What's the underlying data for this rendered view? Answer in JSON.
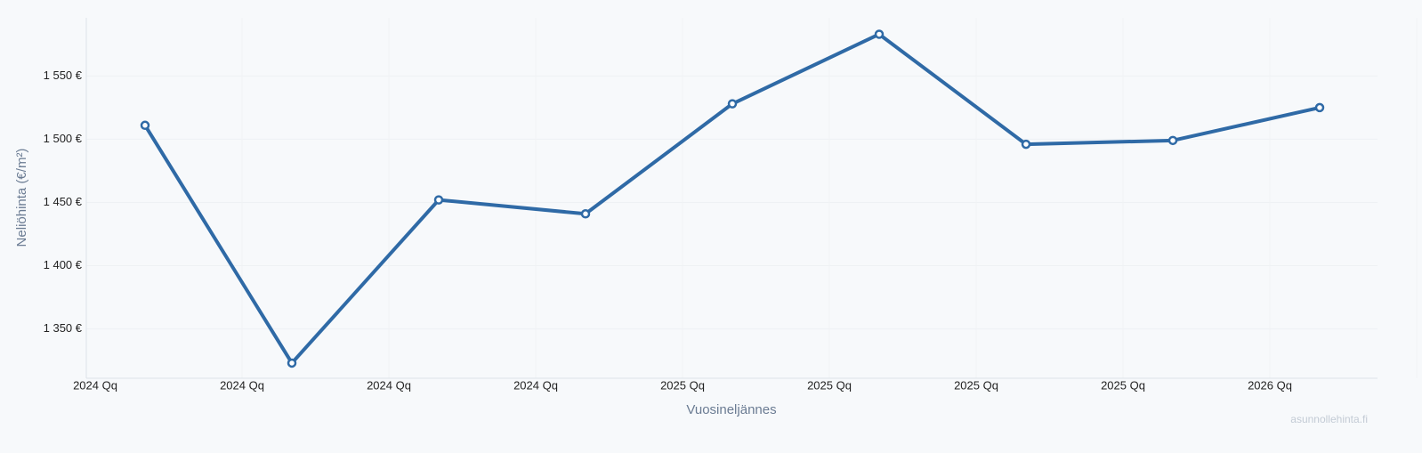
{
  "chart_data": {
    "type": "line",
    "x_label": "Vuosineljännes",
    "y_label": "Neliöhinta (€/m²)",
    "watermark": "asunnollehinta.fi",
    "categories": [
      "2024 Qq",
      "2024 Qq",
      "2024 Qq",
      "2024 Qq",
      "2025 Qq",
      "2025 Qq",
      "2025 Qq",
      "2025 Qq",
      "2026 Qq"
    ],
    "series": [
      {
        "name": "Neliöhinta",
        "color": "#2f6aa6",
        "values": [
          1511,
          1323,
          1452,
          1441,
          1528,
          1583,
          1496,
          1499,
          1525
        ]
      }
    ],
    "ylim": [
      1311,
      1596
    ],
    "yticks": [
      {
        "value": 1350,
        "label": "1 350 €"
      },
      {
        "value": 1400,
        "label": "1 400 €"
      },
      {
        "value": 1450,
        "label": "1 450 €"
      },
      {
        "value": 1500,
        "label": "1 500 €"
      },
      {
        "value": 1550,
        "label": "1 550 €"
      }
    ],
    "grid": true
  }
}
